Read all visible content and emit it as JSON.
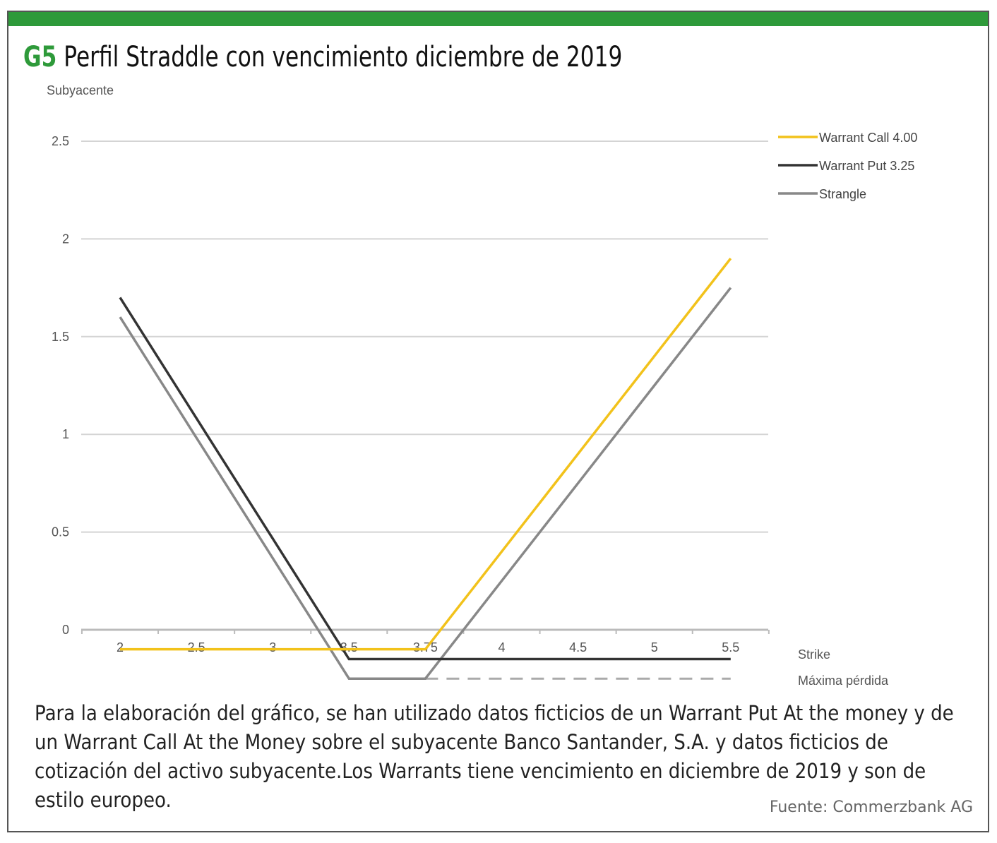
{
  "header": {
    "tag": "G5",
    "title": "Perfil Straddle con vencimiento diciembre de 2019"
  },
  "colors": {
    "brand": "#2e9a3a",
    "call": "#f2c21b",
    "put": "#333333",
    "strangle": "#888888",
    "grid": "#d4d4d4"
  },
  "chart_data": {
    "type": "line",
    "ylabel": "Subyacente",
    "xlabel": "Strike",
    "extra_label": "Máxima pérdida",
    "categories": [
      "2",
      "2.5",
      "3",
      "3.5",
      "3.75",
      "4",
      "4.5",
      "5",
      "5.5"
    ],
    "yticks": [
      "0",
      "0.5",
      "1",
      "1.5",
      "2",
      "2.5"
    ],
    "ylim": [
      -0.3,
      2.5
    ],
    "grid": true,
    "legend": "top-right",
    "series": [
      {
        "name": "Warrant Call 4.00",
        "color": "#f2c21b",
        "values": [
          -0.1,
          -0.1,
          -0.1,
          -0.1,
          -0.1,
          0.4,
          0.9,
          1.4,
          1.9
        ]
      },
      {
        "name": "Warrant Put 3.25",
        "color": "#333333",
        "values": [
          1.7,
          1.083,
          0.467,
          -0.15,
          -0.15,
          -0.15,
          -0.15,
          -0.15,
          -0.15
        ]
      },
      {
        "name": "Strangle",
        "color": "#888888",
        "values": [
          1.6,
          0.983,
          0.367,
          -0.25,
          -0.25,
          0.25,
          0.75,
          1.25,
          1.75
        ]
      }
    ],
    "max_loss_level": -0.25
  },
  "caption": "Para la elaboración del gráfico, se han utilizado datos ficticios de un Warrant Put At the money y de un Warrant Call At the Money sobre el subyacente Banco Santander, S.A. y datos ficticios de cotización del activo subyacente.Los Warrants tiene vencimiento en diciembre de 2019 y son de estilo europeo.",
  "source": "Fuente:  Commerzbank AG"
}
